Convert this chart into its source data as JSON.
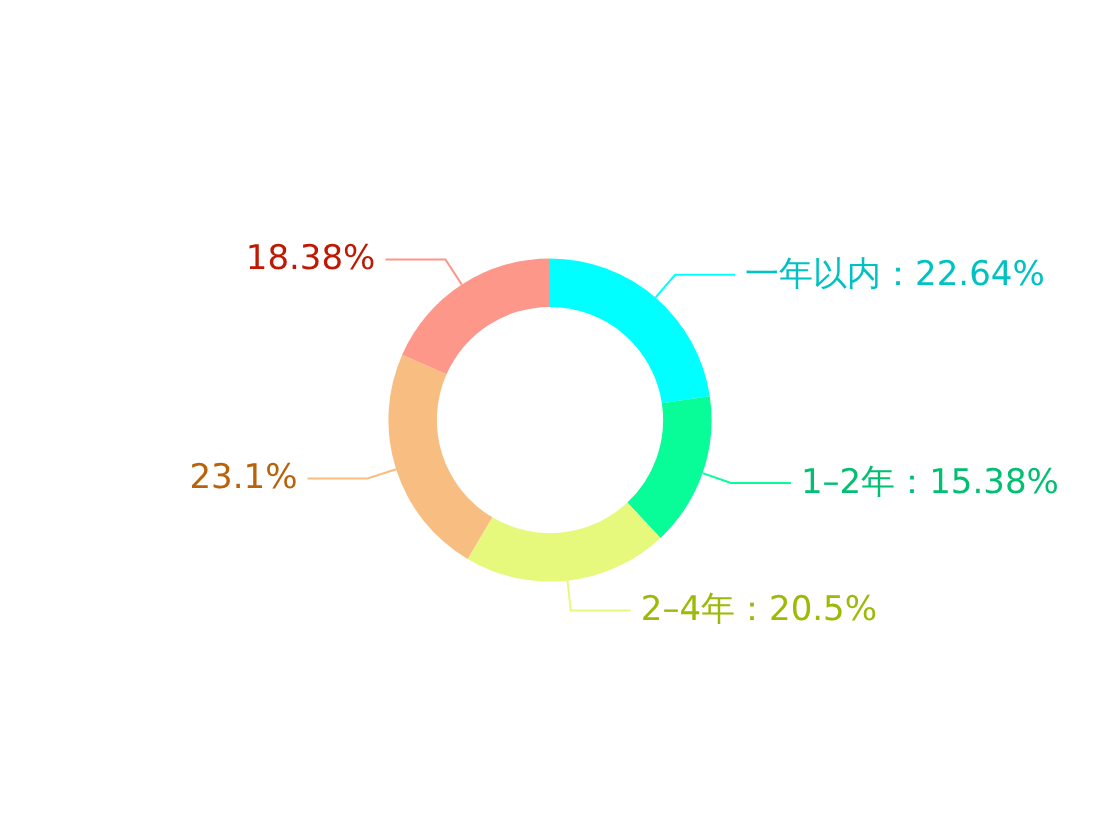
{
  "chart_data": {
    "type": "donut",
    "categories": [
      "一年以内",
      "1–2年",
      "2–4年",
      null,
      null
    ],
    "values": [
      22.64,
      15.38,
      20.5,
      23.1,
      18.38
    ],
    "colors": [
      "#00ffff",
      "#08fc98",
      "#e6f97c",
      "#f8bd80",
      "#fd978a"
    ],
    "value_labels": [
      "22.64%",
      "15.38%",
      "20.5%",
      "23.1%",
      "18.38%"
    ],
    "legend": false
  }
}
